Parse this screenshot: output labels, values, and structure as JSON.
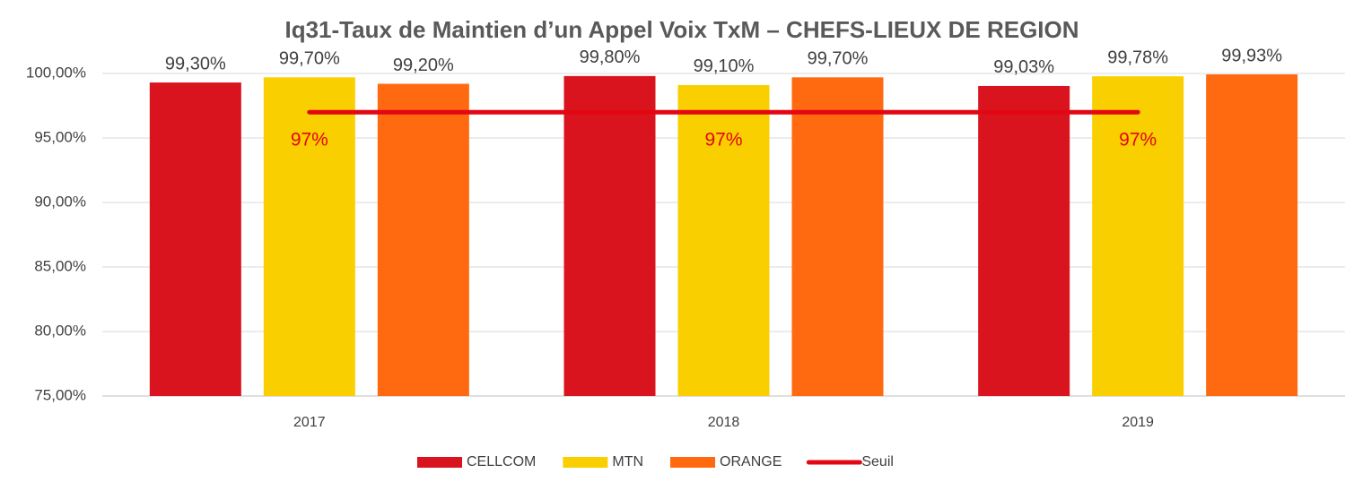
{
  "chart_data": {
    "type": "bar",
    "title": "Iq31-Taux de Maintien d’un Appel Voix TxM – CHEFS-LIEUX DE REGION",
    "categories": [
      "2017",
      "2018",
      "2019"
    ],
    "series": [
      {
        "name": "CELLCOM",
        "color": "#d9141e",
        "values": [
          99.3,
          99.8,
          99.03
        ],
        "value_labels": [
          "99,30%",
          "99,80%",
          "99,03%"
        ]
      },
      {
        "name": "MTN",
        "color": "#f9cf00",
        "values": [
          99.7,
          99.1,
          99.78
        ],
        "value_labels": [
          "99,70%",
          "99,10%",
          "99,78%"
        ]
      },
      {
        "name": "ORANGE",
        "color": "#ff6a10",
        "values": [
          99.2,
          99.7,
          99.93
        ],
        "value_labels": [
          "99,20%",
          "99,70%",
          "99,93%"
        ]
      },
      {
        "name": "Seuil",
        "type": "line",
        "color": "#e30613",
        "values": [
          97,
          97,
          97
        ],
        "value_labels": [
          "97%",
          "97%",
          "97%"
        ]
      }
    ],
    "ylim": [
      75,
      100
    ],
    "yticks": [
      {
        "value": 75,
        "label": "75,00%"
      },
      {
        "value": 80,
        "label": "80,00%"
      },
      {
        "value": 85,
        "label": "85,00%"
      },
      {
        "value": 90,
        "label": "90,00%"
      },
      {
        "value": 95,
        "label": "95,00%"
      },
      {
        "value": 100,
        "label": "100,00%"
      }
    ],
    "grid": true,
    "legend": "bottom"
  }
}
